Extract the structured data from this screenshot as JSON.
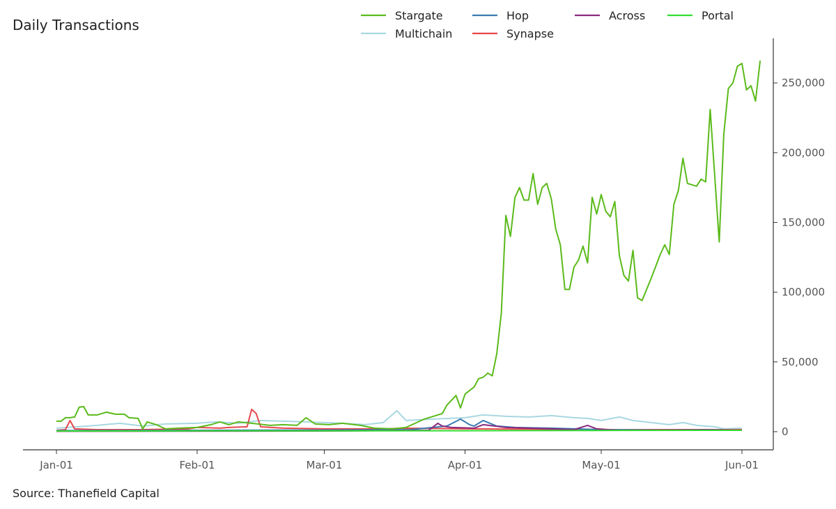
{
  "chart_data": {
    "type": "line",
    "title": "Daily Transactions",
    "source": "Source: Thanefield Capital",
    "xlabel": "",
    "ylabel": "",
    "x_start": "2022-01-01",
    "x_end": "2022-06-01",
    "xticks": [
      {
        "date": "2022-01-01",
        "label": "Jan-01"
      },
      {
        "date": "2022-02-01",
        "label": "Feb-01"
      },
      {
        "date": "2022-03-01",
        "label": "Mar-01"
      },
      {
        "date": "2022-04-01",
        "label": "Apr-01"
      },
      {
        "date": "2022-05-01",
        "label": "May-01"
      },
      {
        "date": "2022-06-01",
        "label": "Jun-01"
      }
    ],
    "ylim": [
      -13000,
      282000
    ],
    "yticks": [
      {
        "value": 0,
        "label": "0"
      },
      {
        "value": 50000,
        "label": "50,000"
      },
      {
        "value": 100000,
        "label": "100,000"
      },
      {
        "value": 150000,
        "label": "150,000"
      },
      {
        "value": 200000,
        "label": "200,000"
      },
      {
        "value": 250000,
        "label": "250,000"
      }
    ],
    "legend_position": "top",
    "grid": false,
    "series": [
      {
        "name": "Multichain",
        "color": "#a8d8e0",
        "points": [
          [
            "2022-01-01",
            2500
          ],
          [
            "2022-01-10",
            4500
          ],
          [
            "2022-01-15",
            6000
          ],
          [
            "2022-01-20",
            4000
          ],
          [
            "2022-01-25",
            5500
          ],
          [
            "2022-02-01",
            6000
          ],
          [
            "2022-02-05",
            7000
          ],
          [
            "2022-02-10",
            6000
          ],
          [
            "2022-02-15",
            8000
          ],
          [
            "2022-02-20",
            7500
          ],
          [
            "2022-02-25",
            7000
          ],
          [
            "2022-03-01",
            6500
          ],
          [
            "2022-03-05",
            6000
          ],
          [
            "2022-03-10",
            5000
          ],
          [
            "2022-03-14",
            6500
          ],
          [
            "2022-03-17",
            15000
          ],
          [
            "2022-03-19",
            8000
          ],
          [
            "2022-03-25",
            9000
          ],
          [
            "2022-04-01",
            10000
          ],
          [
            "2022-04-05",
            12000
          ],
          [
            "2022-04-10",
            11000
          ],
          [
            "2022-04-15",
            10500
          ],
          [
            "2022-04-20",
            11500
          ],
          [
            "2022-04-25",
            10000
          ],
          [
            "2022-04-28",
            9500
          ],
          [
            "2022-05-01",
            8000
          ],
          [
            "2022-05-05",
            10500
          ],
          [
            "2022-05-08",
            8000
          ],
          [
            "2022-05-12",
            6500
          ],
          [
            "2022-05-16",
            5000
          ],
          [
            "2022-05-19",
            6500
          ],
          [
            "2022-05-22",
            4500
          ],
          [
            "2022-05-26",
            3500
          ],
          [
            "2022-05-28",
            2000
          ],
          [
            "2022-06-01",
            2500
          ]
        ]
      },
      {
        "name": "Synapse",
        "color": "#e8474c",
        "points": [
          [
            "2022-01-01",
            1000
          ],
          [
            "2022-01-03",
            1500
          ],
          [
            "2022-01-04",
            8000
          ],
          [
            "2022-01-05",
            2000
          ],
          [
            "2022-01-10",
            1500
          ],
          [
            "2022-01-20",
            1500
          ],
          [
            "2022-01-30",
            2000
          ],
          [
            "2022-02-01",
            3000
          ],
          [
            "2022-02-06",
            2500
          ],
          [
            "2022-02-08",
            3000
          ],
          [
            "2022-02-12",
            3500
          ],
          [
            "2022-02-13",
            16000
          ],
          [
            "2022-02-14",
            13000
          ],
          [
            "2022-02-15",
            3500
          ],
          [
            "2022-02-20",
            2500
          ],
          [
            "2022-03-01",
            2000
          ],
          [
            "2022-03-15",
            2000
          ],
          [
            "2022-03-18",
            2500
          ],
          [
            "2022-04-01",
            2000
          ],
          [
            "2022-05-01",
            1500
          ],
          [
            "2022-06-01",
            1500
          ]
        ]
      },
      {
        "name": "Hop",
        "color": "#3b7bb0",
        "points": [
          [
            "2022-01-01",
            800
          ],
          [
            "2022-02-01",
            1000
          ],
          [
            "2022-03-01",
            1200
          ],
          [
            "2022-03-20",
            1500
          ],
          [
            "2022-03-28",
            4000
          ],
          [
            "2022-03-31",
            9000
          ],
          [
            "2022-04-02",
            5000
          ],
          [
            "2022-04-03",
            4000
          ],
          [
            "2022-04-05",
            8000
          ],
          [
            "2022-04-08",
            4000
          ],
          [
            "2022-04-12",
            3000
          ],
          [
            "2022-04-20",
            2500
          ],
          [
            "2022-05-01",
            1500
          ],
          [
            "2022-05-15",
            1200
          ],
          [
            "2022-06-01",
            1000
          ]
        ]
      },
      {
        "name": "Across",
        "color": "#8a2a7f",
        "points": [
          [
            "2022-01-01",
            300
          ],
          [
            "2022-03-01",
            500
          ],
          [
            "2022-03-24",
            1000
          ],
          [
            "2022-03-26",
            6000
          ],
          [
            "2022-03-27",
            4000
          ],
          [
            "2022-03-29",
            3000
          ],
          [
            "2022-04-03",
            2500
          ],
          [
            "2022-04-05",
            5000
          ],
          [
            "2022-04-10",
            3000
          ],
          [
            "2022-04-20",
            2000
          ],
          [
            "2022-04-25",
            1500
          ],
          [
            "2022-04-28",
            4500
          ],
          [
            "2022-04-30",
            2000
          ],
          [
            "2022-05-05",
            1000
          ],
          [
            "2022-05-25",
            1500
          ],
          [
            "2022-06-01",
            1000
          ]
        ]
      },
      {
        "name": "Portal",
        "color": "#33dd33",
        "points": [
          [
            "2022-01-01",
            500
          ],
          [
            "2022-02-01",
            600
          ],
          [
            "2022-03-01",
            600
          ],
          [
            "2022-04-01",
            700
          ],
          [
            "2022-05-01",
            900
          ],
          [
            "2022-06-01",
            1000
          ]
        ]
      },
      {
        "name": "Stargate",
        "color": "#5aba1a",
        "points": [
          [
            "2022-01-01",
            7500
          ],
          [
            "2022-01-02",
            7500
          ],
          [
            "2022-01-03",
            10000
          ],
          [
            "2022-01-04",
            10000
          ],
          [
            "2022-01-05",
            10500
          ],
          [
            "2022-01-06",
            17500
          ],
          [
            "2022-01-07",
            18000
          ],
          [
            "2022-01-08",
            12000
          ],
          [
            "2022-01-10",
            12000
          ],
          [
            "2022-01-12",
            14000
          ],
          [
            "2022-01-14",
            12500
          ],
          [
            "2022-01-16",
            12500
          ],
          [
            "2022-01-17",
            10000
          ],
          [
            "2022-01-19",
            9500
          ],
          [
            "2022-01-20",
            2000
          ],
          [
            "2022-01-21",
            7000
          ],
          [
            "2022-01-23",
            5000
          ],
          [
            "2022-01-25",
            2000
          ],
          [
            "2022-01-28",
            2500
          ],
          [
            "2022-02-01",
            3000
          ],
          [
            "2022-02-04",
            5000
          ],
          [
            "2022-02-06",
            7000
          ],
          [
            "2022-02-08",
            5000
          ],
          [
            "2022-02-10",
            7000
          ],
          [
            "2022-02-13",
            6000
          ],
          [
            "2022-02-17",
            4500
          ],
          [
            "2022-02-20",
            5000
          ],
          [
            "2022-02-23",
            4500
          ],
          [
            "2022-02-25",
            10000
          ],
          [
            "2022-02-27",
            5500
          ],
          [
            "2022-03-02",
            5000
          ],
          [
            "2022-03-05",
            6000
          ],
          [
            "2022-03-09",
            4500
          ],
          [
            "2022-03-12",
            2500
          ],
          [
            "2022-03-16",
            2000
          ],
          [
            "2022-03-19",
            3000
          ],
          [
            "2022-03-21",
            6000
          ],
          [
            "2022-03-23",
            9000
          ],
          [
            "2022-03-25",
            11000
          ],
          [
            "2022-03-27",
            13000
          ],
          [
            "2022-03-28",
            19000
          ],
          [
            "2022-03-30",
            26000
          ],
          [
            "2022-03-31",
            17000
          ],
          [
            "2022-04-01",
            27000
          ],
          [
            "2022-04-03",
            32000
          ],
          [
            "2022-04-04",
            38000
          ],
          [
            "2022-04-05",
            39000
          ],
          [
            "2022-04-06",
            42000
          ],
          [
            "2022-04-07",
            40000
          ],
          [
            "2022-04-08",
            56000
          ],
          [
            "2022-04-09",
            85000
          ],
          [
            "2022-04-10",
            155000
          ],
          [
            "2022-04-11",
            140000
          ],
          [
            "2022-04-12",
            168000
          ],
          [
            "2022-04-13",
            175000
          ],
          [
            "2022-04-14",
            166000
          ],
          [
            "2022-04-15",
            166000
          ],
          [
            "2022-04-16",
            185000
          ],
          [
            "2022-04-17",
            163000
          ],
          [
            "2022-04-18",
            175000
          ],
          [
            "2022-04-19",
            178000
          ],
          [
            "2022-04-20",
            167000
          ],
          [
            "2022-04-21",
            145000
          ],
          [
            "2022-04-22",
            134000
          ],
          [
            "2022-04-23",
            102000
          ],
          [
            "2022-04-24",
            102000
          ],
          [
            "2022-04-25",
            118000
          ],
          [
            "2022-04-26",
            123000
          ],
          [
            "2022-04-27",
            133000
          ],
          [
            "2022-04-28",
            121000
          ],
          [
            "2022-04-29",
            168000
          ],
          [
            "2022-04-30",
            156000
          ],
          [
            "2022-05-01",
            170000
          ],
          [
            "2022-05-02",
            158000
          ],
          [
            "2022-05-03",
            154000
          ],
          [
            "2022-05-04",
            165000
          ],
          [
            "2022-05-05",
            126000
          ],
          [
            "2022-05-06",
            112000
          ],
          [
            "2022-05-07",
            108000
          ],
          [
            "2022-05-08",
            130000
          ],
          [
            "2022-05-09",
            96000
          ],
          [
            "2022-05-10",
            94000
          ],
          [
            "2022-05-12",
            110000
          ],
          [
            "2022-05-14",
            127000
          ],
          [
            "2022-05-15",
            134000
          ],
          [
            "2022-05-16",
            127000
          ],
          [
            "2022-05-17",
            163000
          ],
          [
            "2022-05-18",
            173000
          ],
          [
            "2022-05-19",
            196000
          ],
          [
            "2022-05-20",
            178000
          ],
          [
            "2022-05-22",
            176000
          ],
          [
            "2022-05-23",
            181000
          ],
          [
            "2022-05-24",
            179000
          ],
          [
            "2022-05-25",
            231000
          ],
          [
            "2022-05-27",
            136000
          ],
          [
            "2022-05-28",
            213000
          ],
          [
            "2022-05-29",
            246000
          ],
          [
            "2022-05-30",
            250000
          ],
          [
            "2022-05-31",
            262000
          ],
          [
            "2022-06-01",
            264000
          ],
          [
            "2022-06-02",
            245000
          ],
          [
            "2022-06-03",
            248000
          ],
          [
            "2022-06-04",
            237000
          ],
          [
            "2022-06-05",
            266000
          ]
        ]
      }
    ]
  },
  "legend": {
    "rows": [
      [
        {
          "name": "Stargate",
          "color": "#5aba1a"
        },
        {
          "name": "Hop",
          "color": "#3b7bb0"
        },
        {
          "name": "Across",
          "color": "#8a2a7f"
        },
        {
          "name": "Portal",
          "color": "#33dd33"
        }
      ],
      [
        {
          "name": "Multichain",
          "color": "#a8d8e0"
        },
        {
          "name": "Synapse",
          "color": "#e8474c"
        }
      ]
    ]
  }
}
